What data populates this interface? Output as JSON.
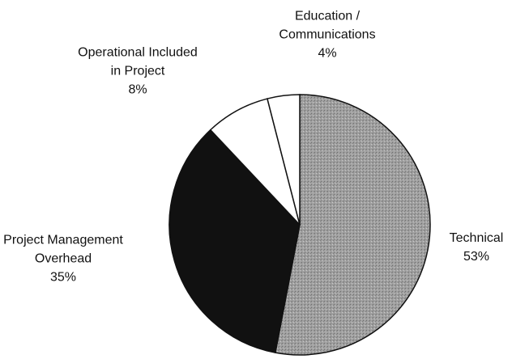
{
  "chart_data": {
    "type": "pie",
    "categories": [
      "Technical",
      "Project Management\nOverhead",
      "Operational Included\nin Project",
      "Education /\nCommunications"
    ],
    "values": [
      53,
      35,
      8,
      4
    ],
    "value_labels": [
      "53%",
      "35%",
      "8%",
      "4%"
    ],
    "colors": [
      "#9b9b9b",
      "#111111",
      "#ffffff",
      "#ffffff"
    ]
  }
}
